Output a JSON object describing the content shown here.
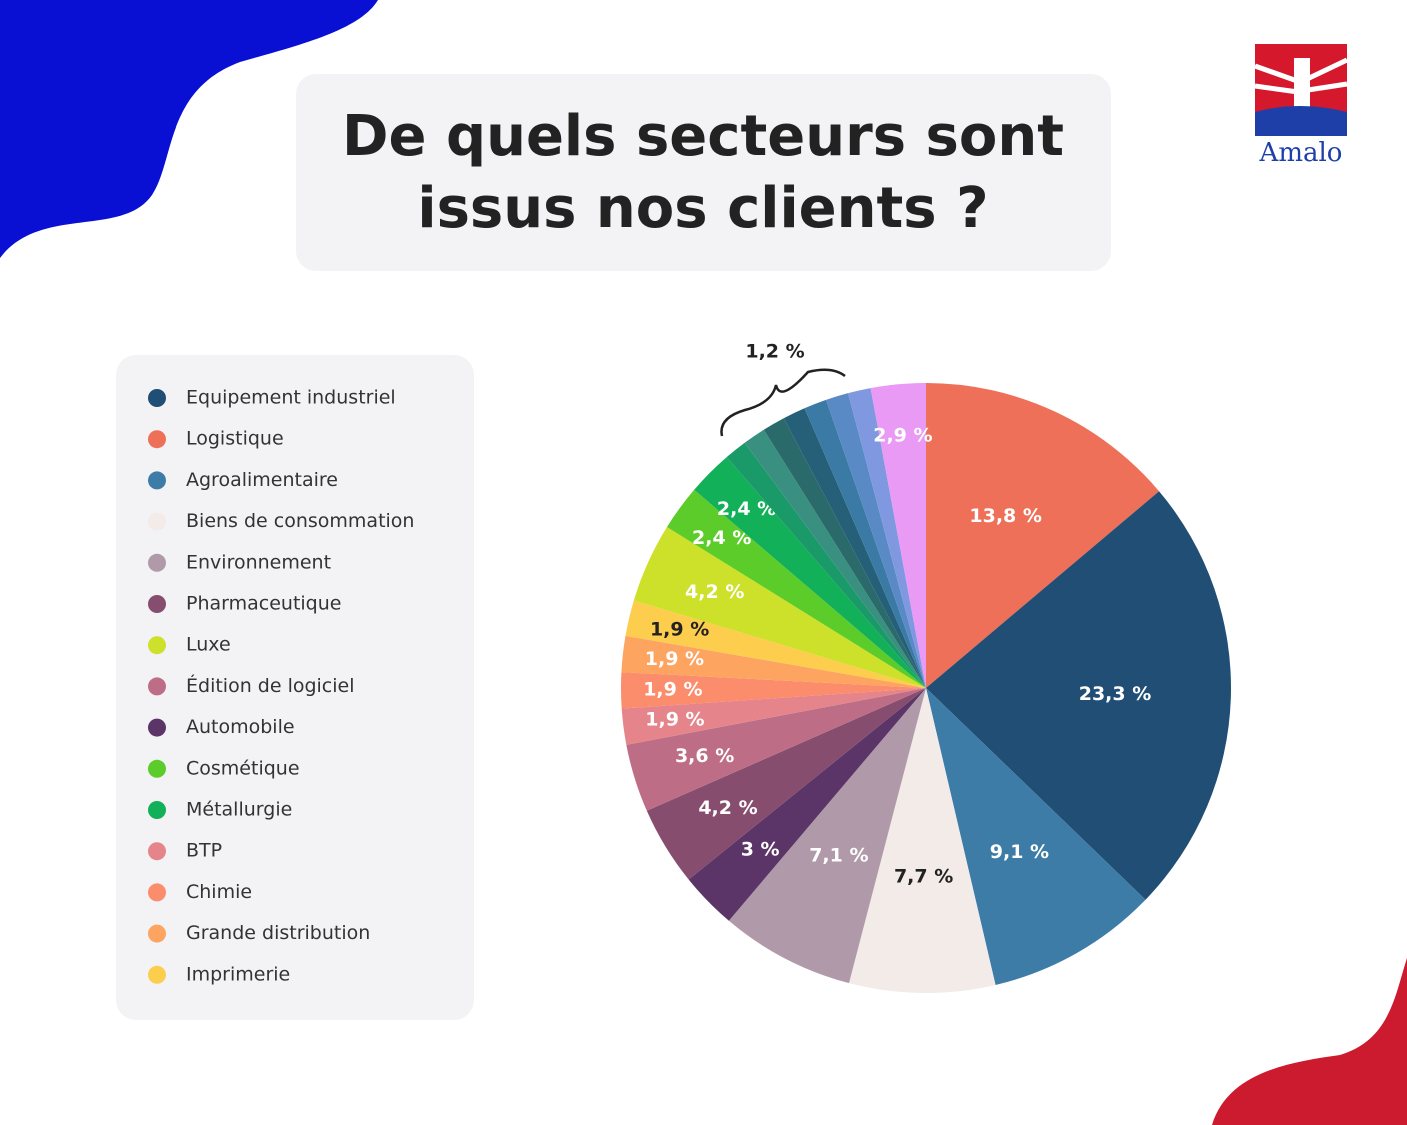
{
  "chart_data": {
    "type": "pie",
    "title": "De quels secteurs sont issus nos clients ?",
    "logo": "Amalo",
    "annotation": "1,2 %",
    "categories": [
      "Logistique",
      "Equipement industriel",
      "Agroalimentaire",
      "Biens de consommation",
      "Environnement",
      "Automobile",
      "Pharmaceutique",
      "Édition de logiciel",
      "BTP",
      "Chimie",
      "Grande distribution",
      "Imprimerie",
      "Luxe",
      "Cosmétique",
      "Métallurgie",
      null,
      null,
      null,
      null,
      null,
      null,
      null,
      null
    ],
    "values": [
      13.8,
      23.3,
      9.1,
      7.7,
      7.1,
      3,
      4.2,
      3.6,
      1.9,
      1.9,
      1.9,
      1.9,
      4.2,
      2.4,
      2.4,
      1.2,
      1.2,
      1.2,
      1.2,
      1.2,
      1.2,
      1.2,
      2.9
    ],
    "value_labels": [
      "13,8 %",
      "23,3 %",
      "9,1 %",
      "7,7 %",
      "7,1 %",
      "3 %",
      "4,2 %",
      "3,6 %",
      "1,9 %",
      "1,9 %",
      "1,9 %",
      "1,9 %",
      "4,2 %",
      "2,4 %",
      "2,4 %",
      null,
      null,
      null,
      null,
      null,
      null,
      null,
      "2,9 %"
    ],
    "colors": [
      "#ee7058",
      "#204e75",
      "#3d7ca7",
      "#f2ebe8",
      "#b09aa9",
      "#5b3567",
      "#874d6e",
      "#bd6e86",
      "#e5848a",
      "#fb8c6c",
      "#fca460",
      "#fdcd4e",
      "#cde02a",
      "#5ccc2a",
      "#12b058",
      "#1a9a68",
      "#3a9080",
      "#2a6a6a",
      "#266078",
      "#3a7aa5",
      "#5a8ac5",
      "#8098e0",
      "#e89af5"
    ]
  }
}
